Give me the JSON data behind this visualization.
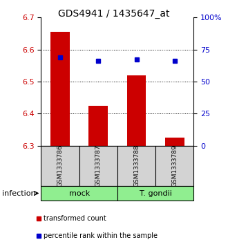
{
  "title": "GDS4941 / 1435647_at",
  "samples": [
    "GSM1333786",
    "GSM1333787",
    "GSM1333788",
    "GSM1333789"
  ],
  "bar_values": [
    6.655,
    6.425,
    6.52,
    6.325
  ],
  "bar_bottom": 6.3,
  "blue_values": [
    6.575,
    6.565,
    6.57,
    6.565
  ],
  "ylim_left": [
    6.3,
    6.7
  ],
  "ylim_right": [
    0,
    100
  ],
  "yticks_left": [
    6.3,
    6.4,
    6.5,
    6.6,
    6.7
  ],
  "yticks_right": [
    0,
    25,
    50,
    75,
    100
  ],
  "ytick_right_labels": [
    "0",
    "25",
    "50",
    "75",
    "100%"
  ],
  "bar_color": "#cc0000",
  "blue_color": "#0000cc",
  "infection_label": "infection",
  "legend_bar_label": "transformed count",
  "legend_dot_label": "percentile rank within the sample",
  "bar_width": 0.5,
  "sample_box_color": "#d3d3d3",
  "green_color": "#90ee90",
  "mock_indices": [
    0,
    1
  ],
  "gondii_indices": [
    2,
    3
  ]
}
